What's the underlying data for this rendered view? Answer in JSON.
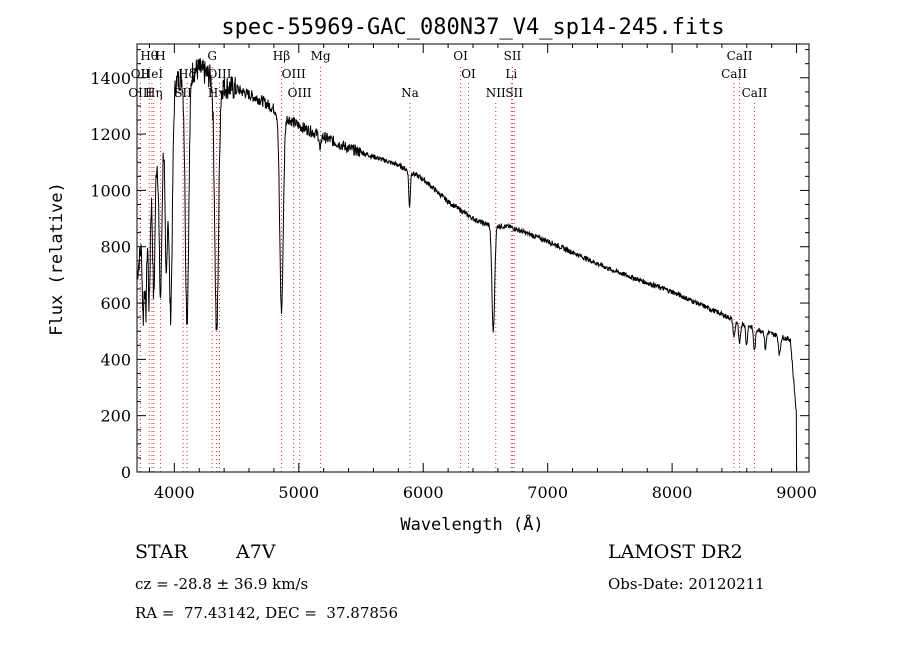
{
  "chart_data": {
    "type": "line",
    "title": "spec-55969-GAC_080N37_V4_sp14-245.fits",
    "xlabel": "Wavelength (Å)",
    "ylabel": "Flux (relative)",
    "xlim": [
      3700,
      9100
    ],
    "ylim": [
      0,
      1520
    ],
    "xticks": [
      {
        "value": 4000,
        "label": "4000"
      },
      {
        "value": 5000,
        "label": "5000"
      },
      {
        "value": 6000,
        "label": "6000"
      },
      {
        "value": 7000,
        "label": "7000"
      },
      {
        "value": 8000,
        "label": "8000"
      },
      {
        "value": 9000,
        "label": "9000"
      }
    ],
    "yticks": [
      {
        "value": 0,
        "label": "0"
      },
      {
        "value": 200,
        "label": "200"
      },
      {
        "value": 400,
        "label": "400"
      },
      {
        "value": 600,
        "label": "600"
      },
      {
        "value": 800,
        "label": "800"
      },
      {
        "value": 1000,
        "label": "1000"
      },
      {
        "value": 1200,
        "label": "1200"
      },
      {
        "value": 1400,
        "label": "1400"
      }
    ],
    "grid": false,
    "legend": "none",
    "series": [
      {
        "color": "#000000",
        "continuum": [
          [
            3700,
            700
          ],
          [
            3800,
            1000
          ],
          [
            3900,
            1200
          ],
          [
            4000,
            1380
          ],
          [
            4100,
            1420
          ],
          [
            4200,
            1430
          ],
          [
            4300,
            1400
          ],
          [
            4400,
            1370
          ],
          [
            4500,
            1360
          ],
          [
            4600,
            1340
          ],
          [
            4700,
            1320
          ],
          [
            4800,
            1290
          ],
          [
            4900,
            1260
          ],
          [
            5000,
            1230
          ],
          [
            5200,
            1190
          ],
          [
            5400,
            1150
          ],
          [
            5600,
            1120
          ],
          [
            5800,
            1090
          ],
          [
            6000,
            1040
          ],
          [
            6200,
            960
          ],
          [
            6400,
            900
          ],
          [
            6500,
            880
          ],
          [
            6700,
            870
          ],
          [
            7000,
            820
          ],
          [
            7500,
            720
          ],
          [
            8000,
            640
          ],
          [
            8500,
            540
          ],
          [
            8700,
            505
          ],
          [
            8950,
            470
          ],
          [
            9000,
            200
          ]
        ],
        "absorption_lines": [
          {
            "wavelength": 3750,
            "depth": 300,
            "width": 7
          },
          {
            "wavelength": 3771,
            "depth": 350,
            "width": 7
          },
          {
            "wavelength": 3798,
            "depth": 400,
            "width": 8
          },
          {
            "wavelength": 3835,
            "depth": 450,
            "width": 9
          },
          {
            "wavelength": 3889,
            "depth": 560,
            "width": 11
          },
          {
            "wavelength": 3934,
            "depth": 550,
            "width": 9
          },
          {
            "wavelength": 3970,
            "depth": 760,
            "width": 14
          },
          {
            "wavelength": 4102,
            "depth": 880,
            "width": 14
          },
          {
            "wavelength": 4340,
            "depth": 900,
            "width": 15
          },
          {
            "wavelength": 4861,
            "depth": 700,
            "width": 14
          },
          {
            "wavelength": 5172,
            "depth": 60,
            "width": 6
          },
          {
            "wavelength": 5890,
            "depth": 130,
            "width": 6
          },
          {
            "wavelength": 6563,
            "depth": 380,
            "width": 11
          },
          {
            "wavelength": 8498,
            "depth": 60,
            "width": 8
          },
          {
            "wavelength": 8542,
            "depth": 80,
            "width": 8
          },
          {
            "wavelength": 8598,
            "depth": 70,
            "width": 7
          },
          {
            "wavelength": 8662,
            "depth": 80,
            "width": 8
          },
          {
            "wavelength": 8750,
            "depth": 60,
            "width": 7
          },
          {
            "wavelength": 8863,
            "depth": 65,
            "width": 8
          }
        ]
      }
    ],
    "line_markers": [
      {
        "label": "Hθ",
        "wavelength": 3798,
        "row": 0
      },
      {
        "label": "H",
        "wavelength": 3889,
        "row": 0
      },
      {
        "label": "OII",
        "wavelength": 3727,
        "row": 1
      },
      {
        "label": "HeI",
        "wavelength": 3820,
        "row": 1
      },
      {
        "label": "OIII",
        "wavelength": 3727,
        "row": 2
      },
      {
        "label": "Hη",
        "wavelength": 3835,
        "row": 2
      },
      {
        "label": "Hδ",
        "wavelength": 4102,
        "row": 1
      },
      {
        "label": "SII",
        "wavelength": 4070,
        "row": 2
      },
      {
        "label": "G",
        "wavelength": 4304,
        "row": 0
      },
      {
        "label": "OIII",
        "wavelength": 4363,
        "row": 1
      },
      {
        "label": "Hγ",
        "wavelength": 4340,
        "row": 2
      },
      {
        "label": "Hβ",
        "wavelength": 4861,
        "row": 0
      },
      {
        "label": "OIII",
        "wavelength": 4959,
        "row": 1
      },
      {
        "label": "OIII",
        "wavelength": 5007,
        "row": 2
      },
      {
        "label": "Mg",
        "wavelength": 5175,
        "row": 0
      },
      {
        "label": "Na",
        "wavelength": 5893,
        "row": 2
      },
      {
        "label": "OI",
        "wavelength": 6300,
        "row": 0
      },
      {
        "label": "OI",
        "wavelength": 6364,
        "row": 1
      },
      {
        "label": "SII",
        "wavelength": 6717,
        "row": 0
      },
      {
        "label": "Li",
        "wavelength": 6708,
        "row": 1
      },
      {
        "label": "NII",
        "wavelength": 6583,
        "row": 2
      },
      {
        "label": "SII",
        "wavelength": 6731,
        "row": 2
      },
      {
        "label": "CaII",
        "wavelength": 8542,
        "row": 0
      },
      {
        "label": "CaII",
        "wavelength": 8498,
        "row": 1
      },
      {
        "label": "CaII",
        "wavelength": 8662,
        "row": 2
      }
    ]
  },
  "info": {
    "class_label": "STAR",
    "subclass": "A7V",
    "survey": "LAMOST DR2",
    "cz": "cz = -28.8 ± 36.9 km/s",
    "obs_date": "Obs-Date: 20120211",
    "coords": "RA =  77.43142, DEC =  37.87856"
  }
}
